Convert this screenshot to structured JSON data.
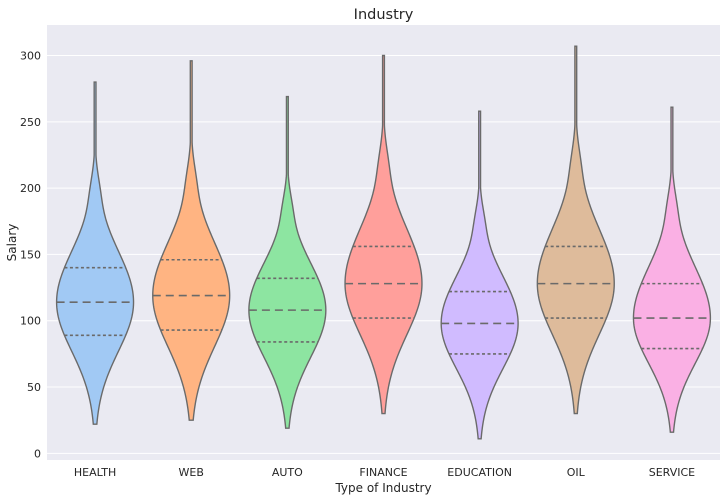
{
  "chart_data": {
    "type": "violin",
    "title": "Industry",
    "xlabel": "Type of Industry",
    "ylabel": "Salary",
    "ylim": [
      -5,
      323
    ],
    "yticks": [
      0,
      50,
      100,
      150,
      200,
      250,
      300
    ],
    "grid": true,
    "categories": [
      "HEALTH",
      "WEB",
      "AUTO",
      "FINANCE",
      "EDUCATION",
      "OIL",
      "SERVICE"
    ],
    "series": [
      {
        "category": "HEALTH",
        "min": 22,
        "q1": 89,
        "median": 114,
        "q3": 140,
        "max": 280,
        "color": "#a1c9f4"
      },
      {
        "category": "WEB",
        "min": 25,
        "q1": 93,
        "median": 119,
        "q3": 146,
        "max": 296,
        "color": "#ffb482"
      },
      {
        "category": "AUTO",
        "min": 19,
        "q1": 84,
        "median": 108,
        "q3": 132,
        "max": 269,
        "color": "#8de5a1"
      },
      {
        "category": "FINANCE",
        "min": 30,
        "q1": 102,
        "median": 128,
        "q3": 156,
        "max": 300,
        "color": "#ff9f9b"
      },
      {
        "category": "EDUCATION",
        "min": 11,
        "q1": 75,
        "median": 98,
        "q3": 122,
        "max": 258,
        "color": "#d0bbff"
      },
      {
        "category": "OIL",
        "min": 30,
        "q1": 102,
        "median": 128,
        "q3": 156,
        "max": 307,
        "color": "#debb9b"
      },
      {
        "category": "SERVICE",
        "min": 16,
        "q1": 79,
        "median": 102,
        "q3": 128,
        "max": 261,
        "color": "#fab0e4"
      }
    ]
  }
}
